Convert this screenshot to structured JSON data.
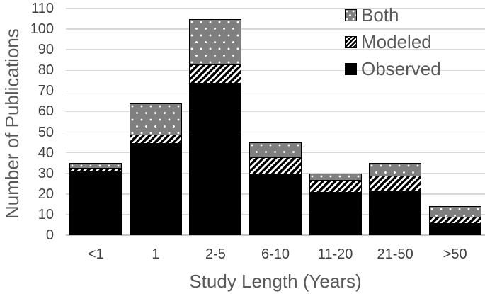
{
  "chart_data": {
    "type": "bar",
    "stacked": true,
    "title": "",
    "xlabel": "Study Length (Years)",
    "ylabel": "Number of Publications",
    "categories": [
      "<1",
      "1",
      "2-5",
      "6-10",
      "11-20",
      "21-50",
      ">50"
    ],
    "series": [
      {
        "name": "Observed",
        "pattern": "solid-black",
        "values": [
          31,
          45,
          74,
          30,
          21,
          22,
          6
        ]
      },
      {
        "name": "Modeled",
        "pattern": "diagonal-hatch",
        "values": [
          2,
          4,
          9,
          8,
          6,
          7,
          3
        ]
      },
      {
        "name": "Both",
        "pattern": "gray-dots",
        "values": [
          2,
          15,
          22,
          7,
          3,
          6,
          5
        ]
      }
    ],
    "totals": [
      35,
      64,
      105,
      45,
      30,
      35,
      14
    ],
    "ylim": [
      0,
      110
    ],
    "yticks": [
      0,
      10,
      20,
      30,
      40,
      50,
      60,
      70,
      80,
      90,
      100,
      110
    ],
    "grid": "horizontal",
    "legend_position": "top-right",
    "legend_order": [
      "Both",
      "Modeled",
      "Observed"
    ],
    "colors": {
      "observed_fill": "#000000",
      "both_fill": "#7f7f7f",
      "dot_color": "#ffffff",
      "hatch_color": "#000000",
      "bar_border": "#000000",
      "gridline": "#d9d9d9",
      "tick_text": "#404040",
      "title_text": "#595959"
    }
  }
}
